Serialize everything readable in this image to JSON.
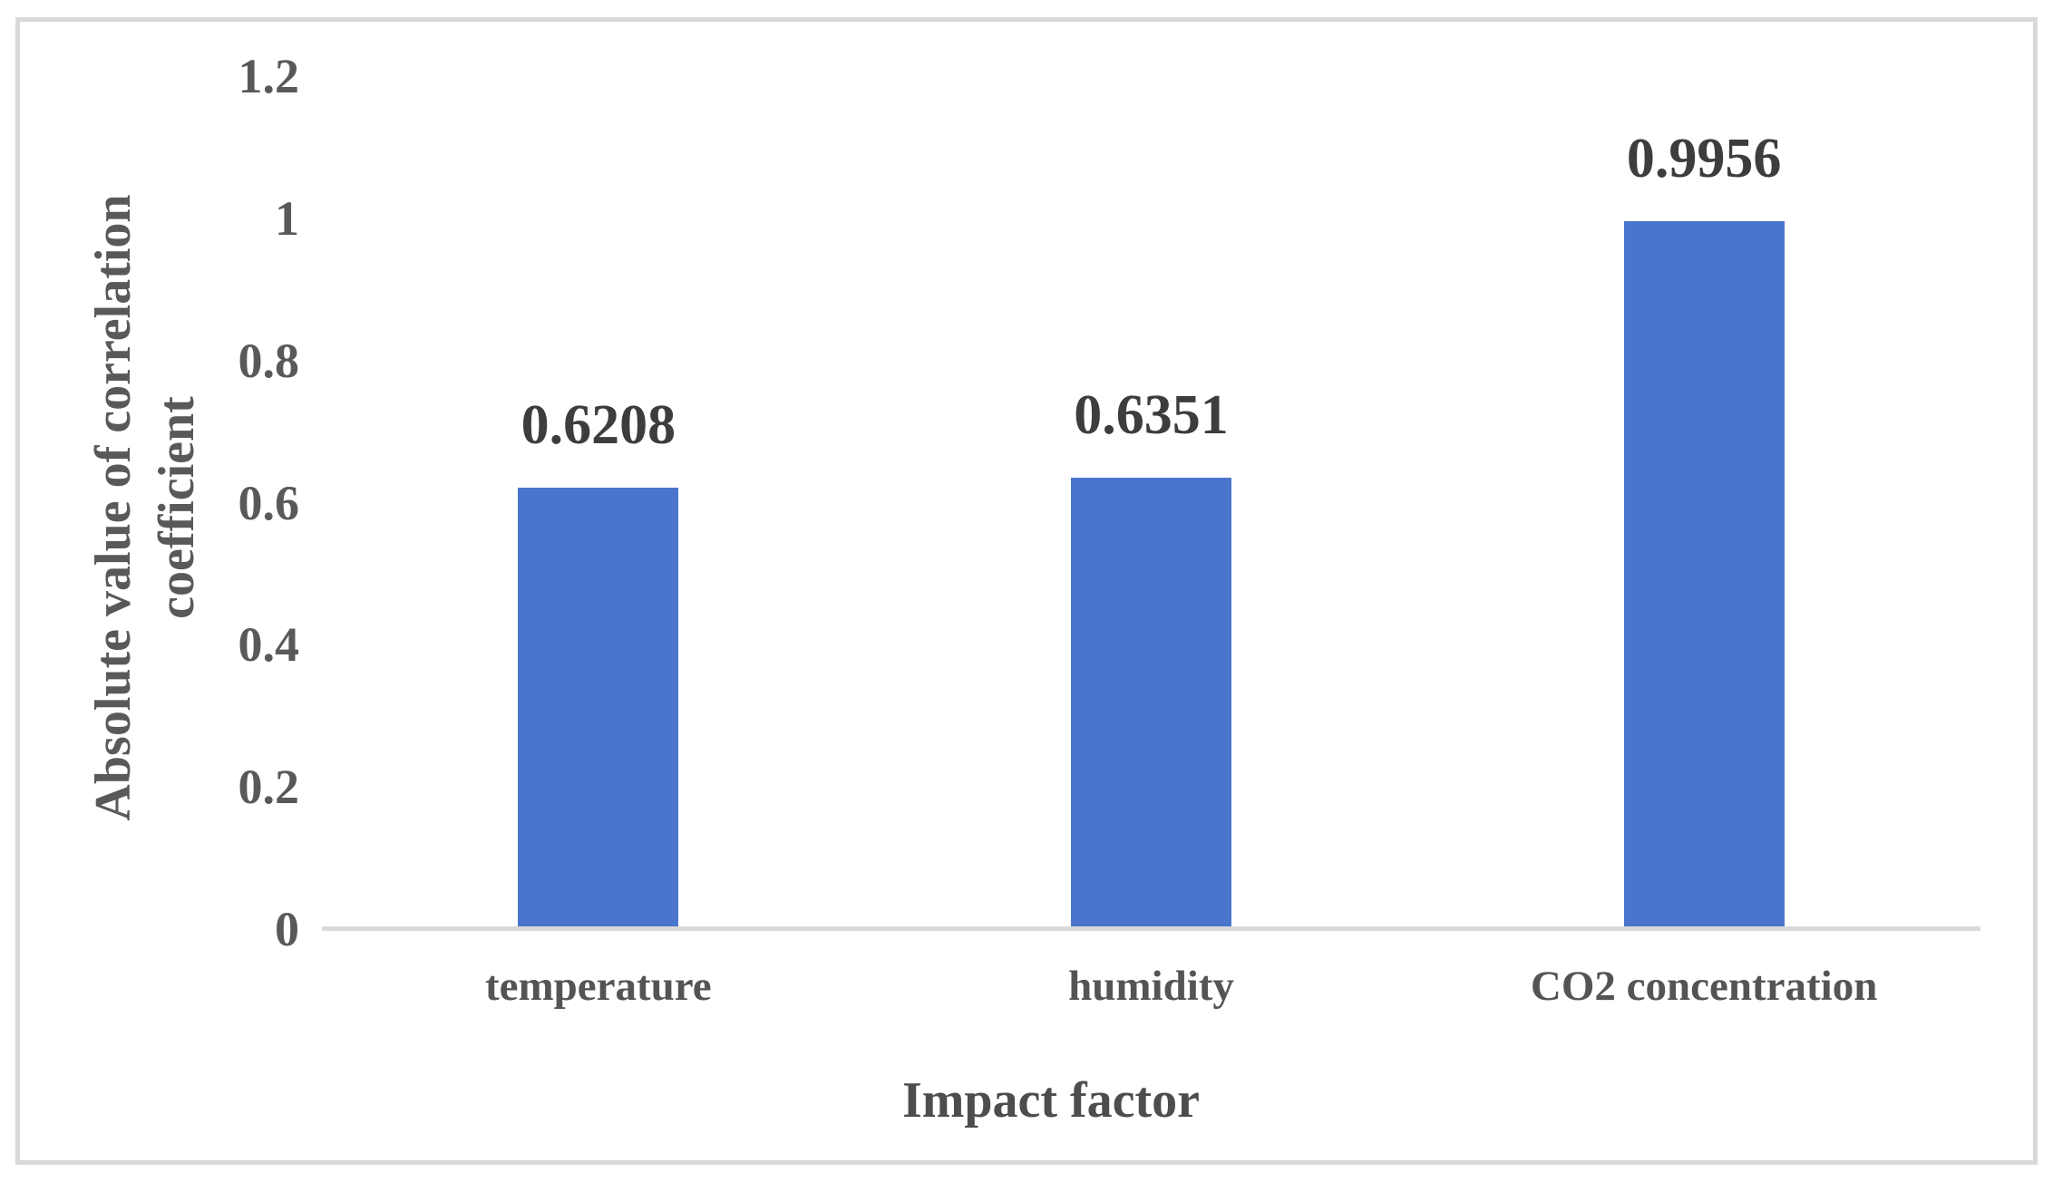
{
  "chart_data": {
    "type": "bar",
    "title": "",
    "categories": [
      "temperature",
      "humidity",
      "CO2 concentration"
    ],
    "values": [
      0.6208,
      0.6351,
      0.9956
    ],
    "data_labels": [
      "0.6208",
      "0.6351",
      "0.9956"
    ],
    "xlabel": "Impact factor",
    "ylabel": "Absolute value of correlation coefficient",
    "ylabel_lines": [
      "Absolute value of correlation",
      "coefficient"
    ],
    "yticks": [
      0,
      0.2,
      0.4,
      0.6,
      0.8,
      1,
      1.2
    ],
    "ytick_labels": [
      "0",
      "0.2",
      "0.4",
      "0.6",
      "0.8",
      "1",
      "1.2"
    ],
    "ylim": [
      0,
      1.2
    ],
    "grid": false,
    "legend_position": "none",
    "bar_color": "#4A75CD",
    "axis_line_color": "#D9D9D9",
    "border_color": "#D9D9D9",
    "tick_text_color": "#595959",
    "data_label_color": "#3d3d3d"
  }
}
